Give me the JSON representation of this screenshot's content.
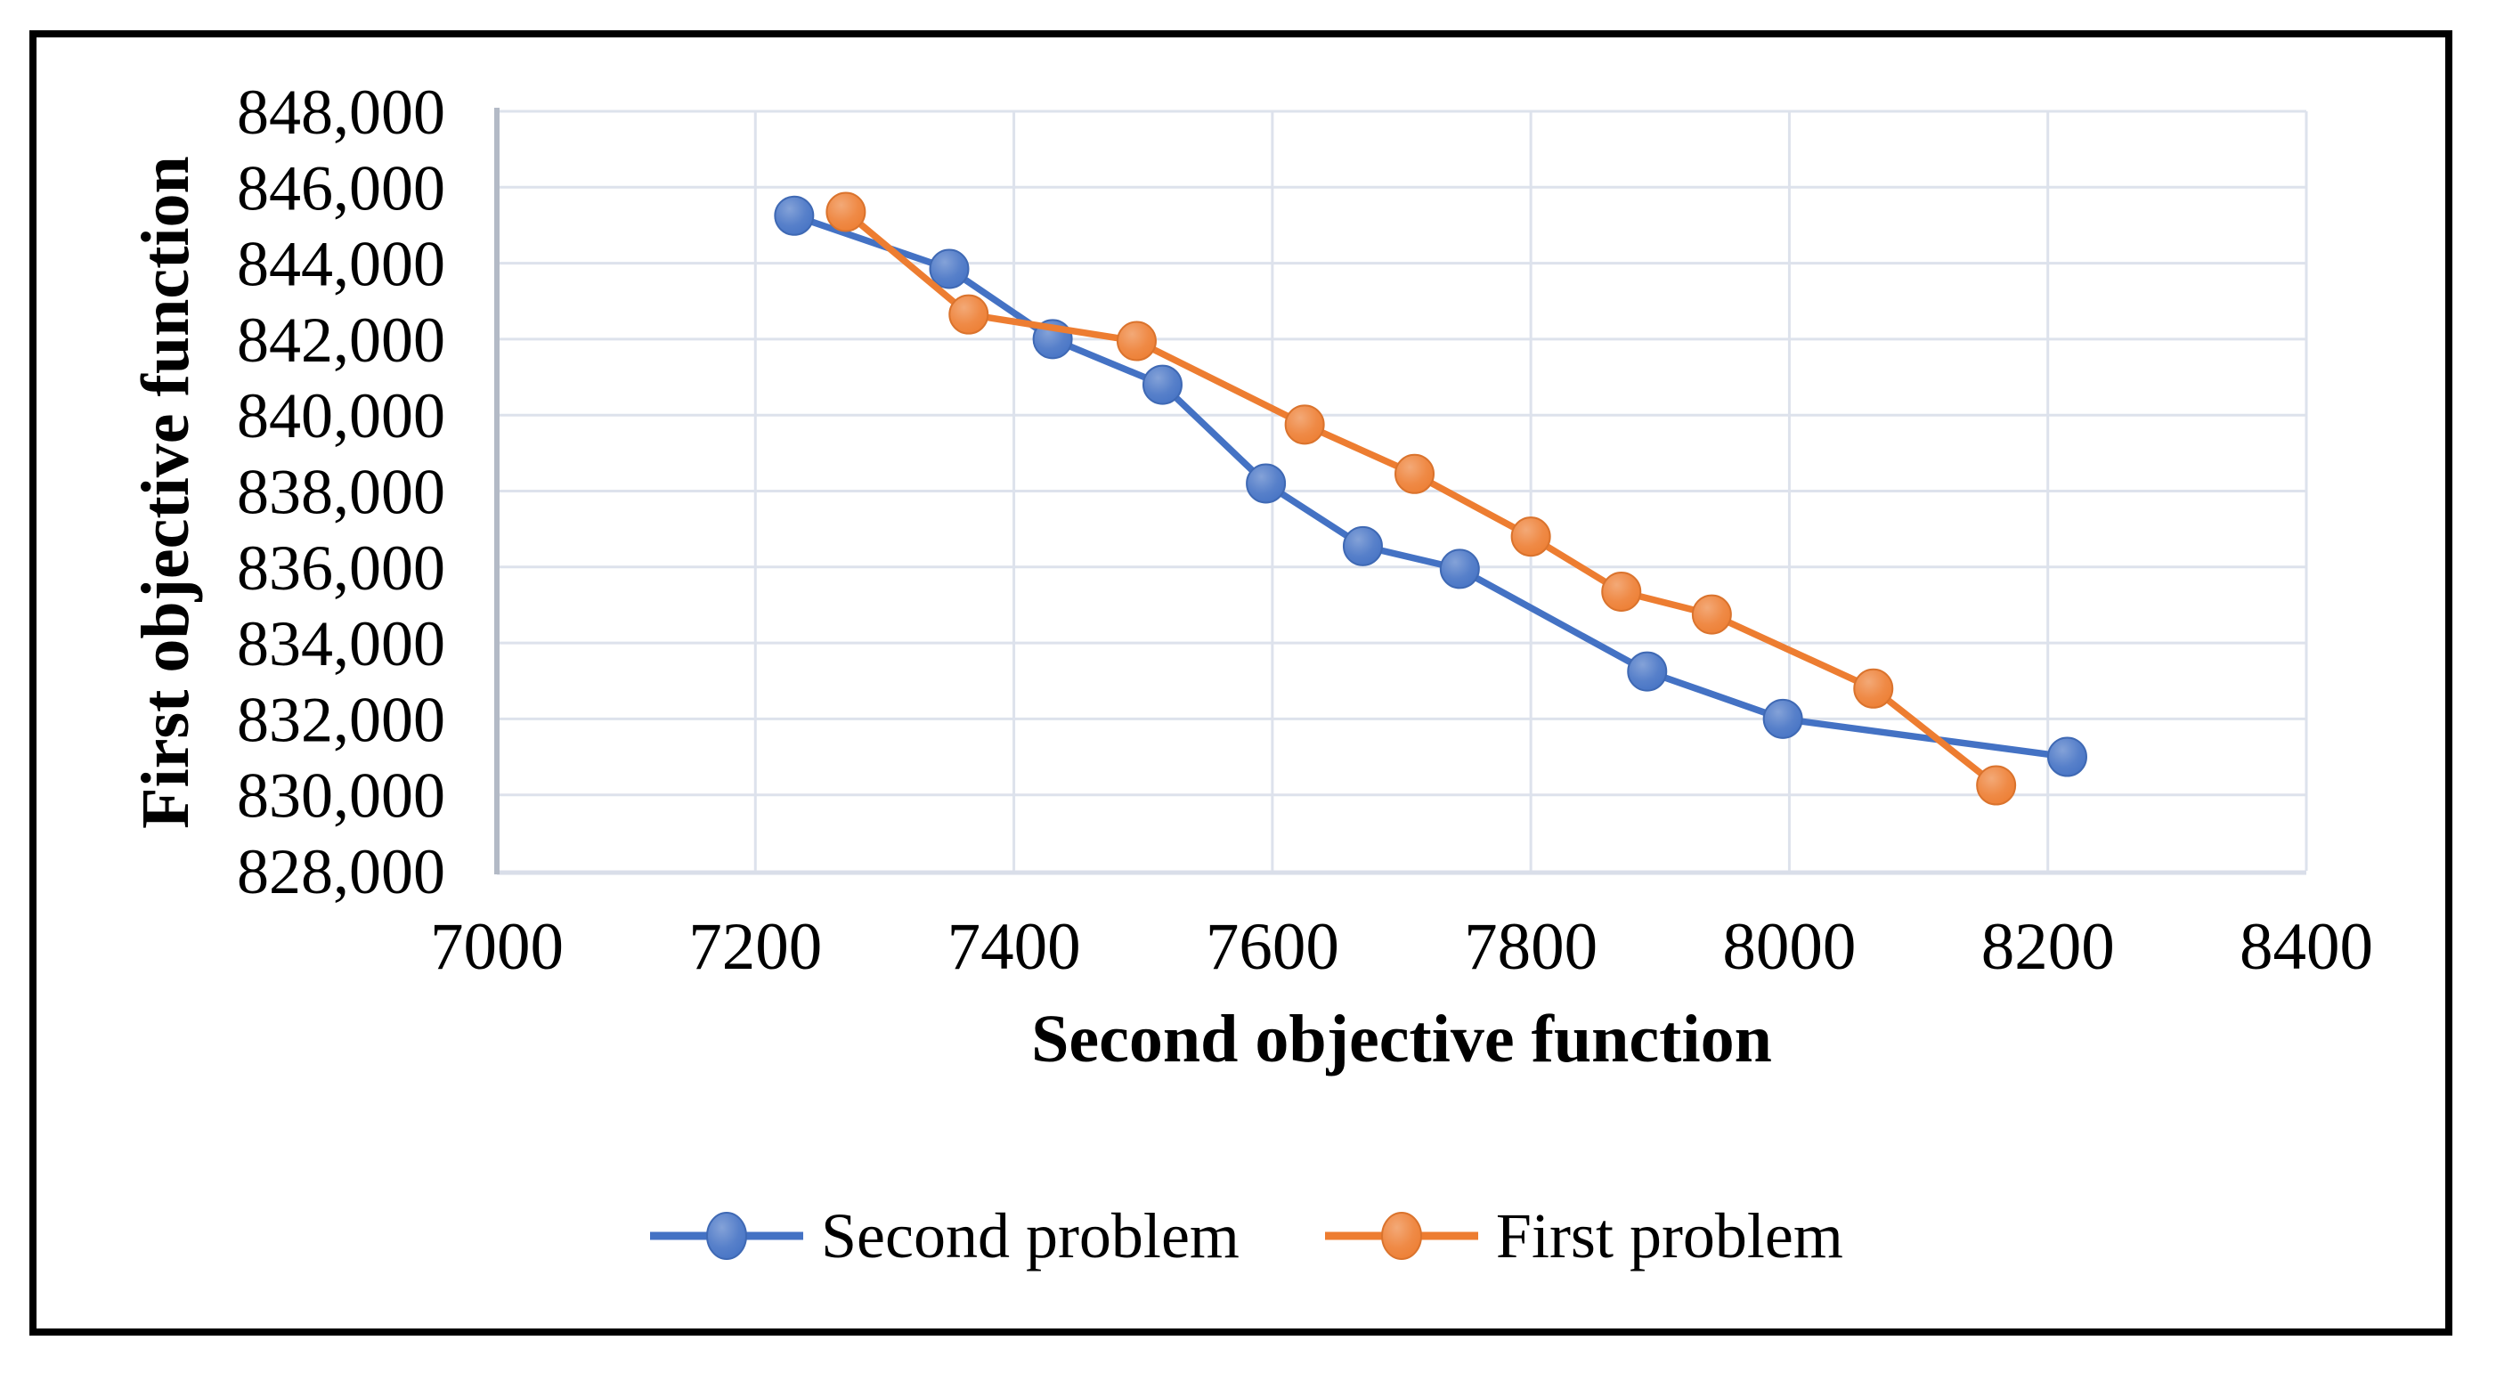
{
  "chart_data": {
    "type": "line",
    "title": "",
    "xlabel": "Second objective function",
    "ylabel": "First objective function",
    "xlim": [
      7000,
      8400
    ],
    "ylim": [
      828000,
      848000
    ],
    "grid": true,
    "legend_position": "bottom",
    "x_ticks": [
      {
        "v": 7000,
        "label": "7000"
      },
      {
        "v": 7200,
        "label": "7200"
      },
      {
        "v": 7400,
        "label": "7400"
      },
      {
        "v": 7600,
        "label": "7600"
      },
      {
        "v": 7800,
        "label": "7800"
      },
      {
        "v": 8000,
        "label": "8000"
      },
      {
        "v": 8200,
        "label": "8200"
      },
      {
        "v": 8400,
        "label": "8400"
      }
    ],
    "y_ticks": [
      {
        "v": 828000,
        "label": "828,000"
      },
      {
        "v": 830000,
        "label": "830,000"
      },
      {
        "v": 832000,
        "label": "832,000"
      },
      {
        "v": 834000,
        "label": "834,000"
      },
      {
        "v": 836000,
        "label": "836,000"
      },
      {
        "v": 838000,
        "label": "838,000"
      },
      {
        "v": 840000,
        "label": "840,000"
      },
      {
        "v": 842000,
        "label": "842,000"
      },
      {
        "v": 844000,
        "label": "844,000"
      },
      {
        "v": 846000,
        "label": "846,000"
      },
      {
        "v": 848000,
        "label": "848,000"
      }
    ],
    "series": [
      {
        "name": "Second problem",
        "color": "#4472C4",
        "points": [
          [
            7230,
            845250
          ],
          [
            7350,
            843850
          ],
          [
            7430,
            842000
          ],
          [
            7515,
            840800
          ],
          [
            7595,
            838200
          ],
          [
            7670,
            836550
          ],
          [
            7745,
            835950
          ],
          [
            7890,
            833250
          ],
          [
            7995,
            832000
          ],
          [
            8215,
            831000
          ]
        ]
      },
      {
        "name": "First problem",
        "color": "#ED7D31",
        "points": [
          [
            7270,
            845350
          ],
          [
            7365,
            842650
          ],
          [
            7495,
            841950
          ],
          [
            7625,
            839750
          ],
          [
            7710,
            838450
          ],
          [
            7800,
            836800
          ],
          [
            7870,
            835350
          ],
          [
            7940,
            834750
          ],
          [
            8065,
            832800
          ],
          [
            8160,
            830250
          ]
        ]
      }
    ]
  },
  "styles": {
    "grid_color": "#dde2ec",
    "bottom_line_color": "#d9dee9",
    "axis_color": "#b3bac6",
    "text_color": "#000000",
    "background": "#ffffff"
  }
}
